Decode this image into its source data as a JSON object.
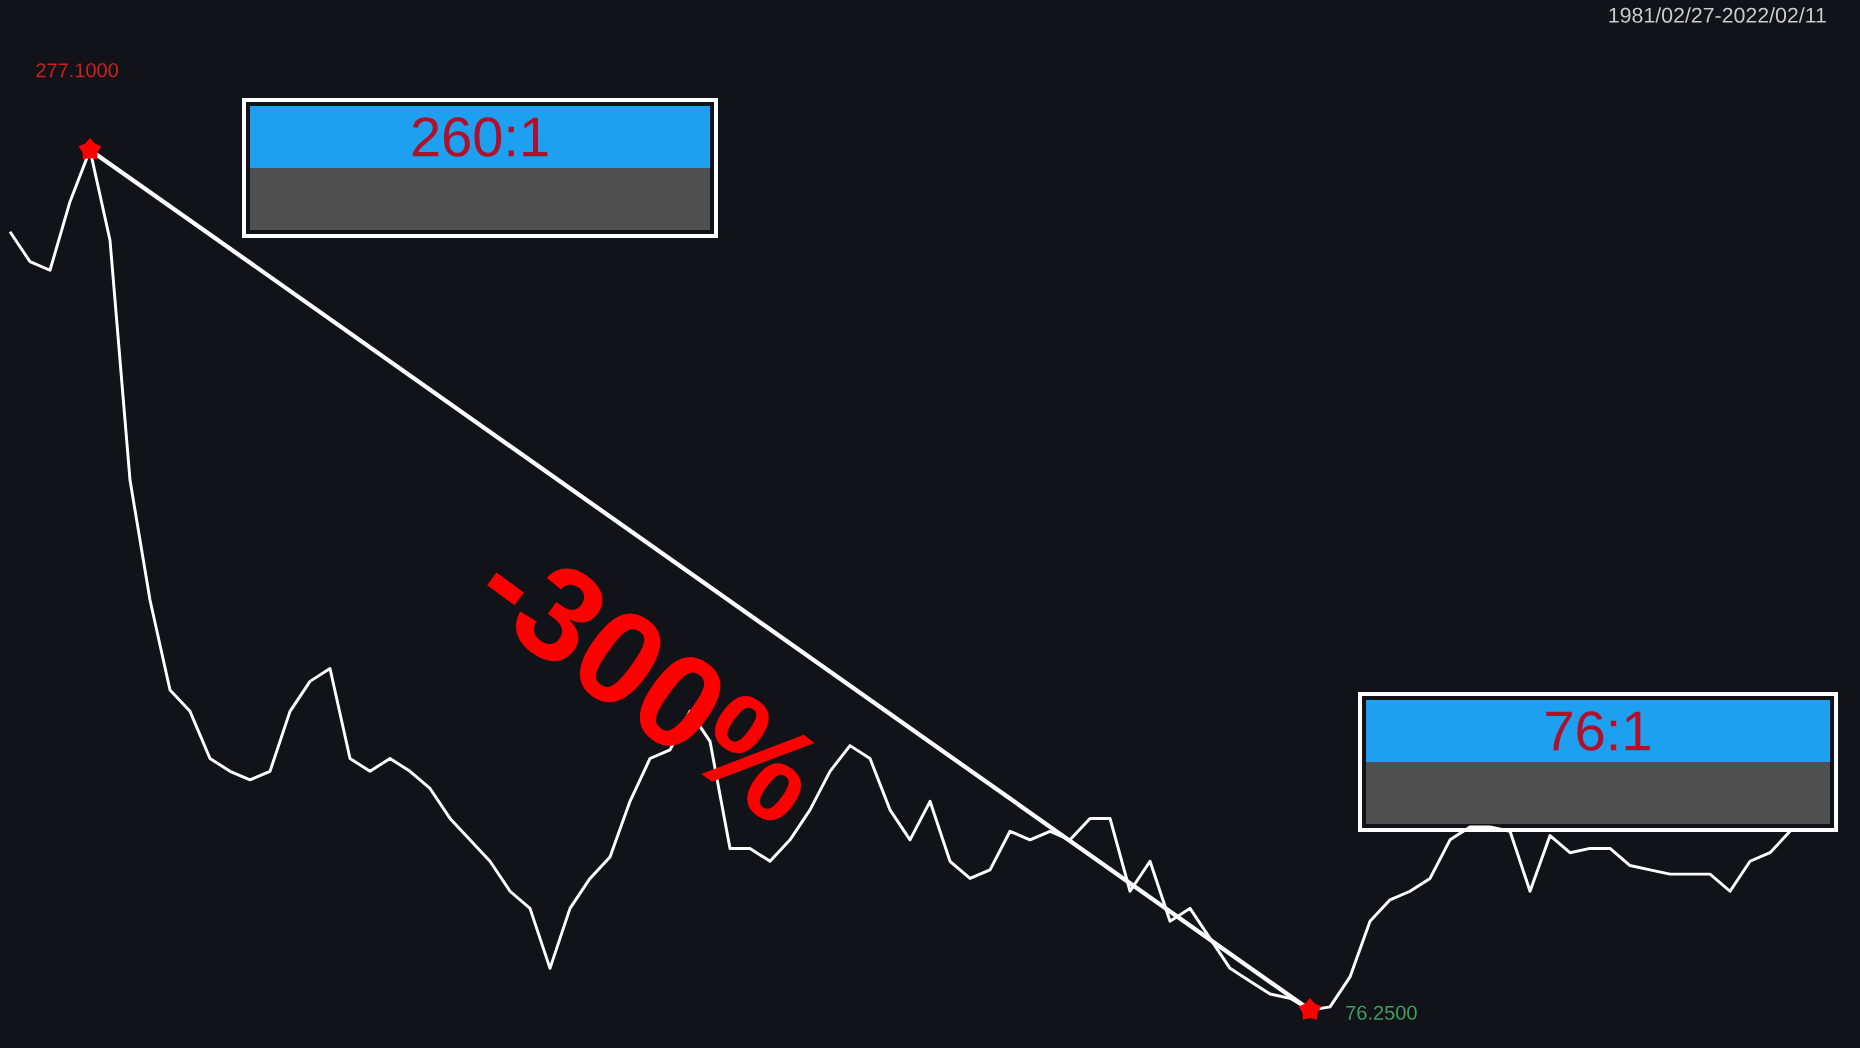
{
  "chart_data": {
    "type": "line",
    "subtitle": "1981/02/27-2022/02/11",
    "categories": [
      null,
      null,
      null,
      null,
      null,
      null,
      null,
      null,
      null,
      null,
      null,
      null,
      null,
      null,
      null,
      null,
      null,
      null,
      null,
      null,
      null,
      null,
      null,
      null,
      null,
      null,
      null,
      null,
      null,
      null,
      null,
      null,
      null,
      null,
      null,
      null,
      null,
      null,
      null,
      null,
      null,
      null,
      null,
      null,
      null,
      null,
      null,
      null,
      null,
      null,
      null,
      null,
      null,
      null,
      null,
      null,
      null,
      null,
      null,
      null,
      null,
      null,
      null,
      null,
      null,
      null,
      null,
      null,
      null,
      null,
      null,
      null,
      null,
      null,
      null,
      null,
      null,
      null,
      null,
      null,
      null,
      null,
      null,
      null,
      null,
      null,
      null,
      null,
      null,
      null
    ],
    "series": [
      {
        "color": "#ffffff",
        "values": [
          258,
          251,
          249,
          265,
          277.1,
          256,
          200,
          172,
          151,
          146,
          135,
          132,
          130,
          132,
          146,
          153,
          156,
          135,
          132,
          135,
          132,
          128,
          121,
          116,
          111,
          104,
          100,
          86,
          100,
          107,
          112,
          125,
          135,
          137,
          146,
          139,
          114,
          114,
          111,
          116,
          123,
          132,
          138,
          135,
          123,
          116,
          125,
          111,
          107,
          109,
          118,
          116,
          118,
          116,
          121,
          121,
          104,
          111,
          97,
          100,
          93,
          86,
          83,
          80,
          79,
          76.25,
          77,
          84,
          97,
          102,
          104,
          107,
          116,
          119,
          119,
          118,
          104,
          117,
          113,
          114,
          114,
          110,
          109,
          108,
          108,
          108,
          104,
          111,
          113,
          118
        ],
        "value_labels": [
          null,
          null,
          null,
          null,
          "277.1000",
          null,
          null,
          null,
          null,
          null,
          null,
          null,
          null,
          null,
          null,
          null,
          null,
          null,
          null,
          null,
          null,
          null,
          null,
          null,
          null,
          null,
          null,
          null,
          null,
          null,
          null,
          null,
          null,
          null,
          null,
          null,
          null,
          null,
          null,
          null,
          null,
          null,
          null,
          null,
          null,
          null,
          null,
          null,
          null,
          null,
          null,
          null,
          null,
          null,
          null,
          null,
          null,
          null,
          null,
          null,
          null,
          null,
          null,
          null,
          null,
          "76.2500",
          null,
          null,
          null,
          null,
          null,
          null,
          null,
          null,
          null,
          null,
          null,
          null,
          null,
          null,
          null,
          null,
          null,
          null,
          null,
          null,
          null,
          null,
          null,
          null
        ]
      },
      {
        "type": "line",
        "color": "#ffffff",
        "values": [
          null,
          null,
          null,
          null,
          277.1,
          null,
          null,
          null,
          null,
          null,
          null,
          null,
          null,
          null,
          null,
          null,
          null,
          null,
          null,
          null,
          null,
          null,
          null,
          null,
          null,
          null,
          null,
          null,
          null,
          null,
          null,
          null,
          null,
          null,
          null,
          null,
          null,
          null,
          null,
          null,
          null,
          null,
          null,
          null,
          null,
          null,
          null,
          null,
          null,
          null,
          null,
          null,
          null,
          null,
          null,
          null,
          null,
          null,
          null,
          null,
          null,
          null,
          null,
          null,
          null,
          76.25,
          null,
          null,
          null,
          null,
          null,
          null,
          null,
          null,
          null,
          null,
          null,
          null,
          null,
          null,
          null,
          null,
          null,
          null,
          null,
          null,
          null,
          null,
          null,
          null
        ]
      }
    ],
    "ylim": [
      67.4,
      312.1
    ],
    "annotations": [
      "260:1",
      "76:1",
      "-300%"
    ]
  }
}
